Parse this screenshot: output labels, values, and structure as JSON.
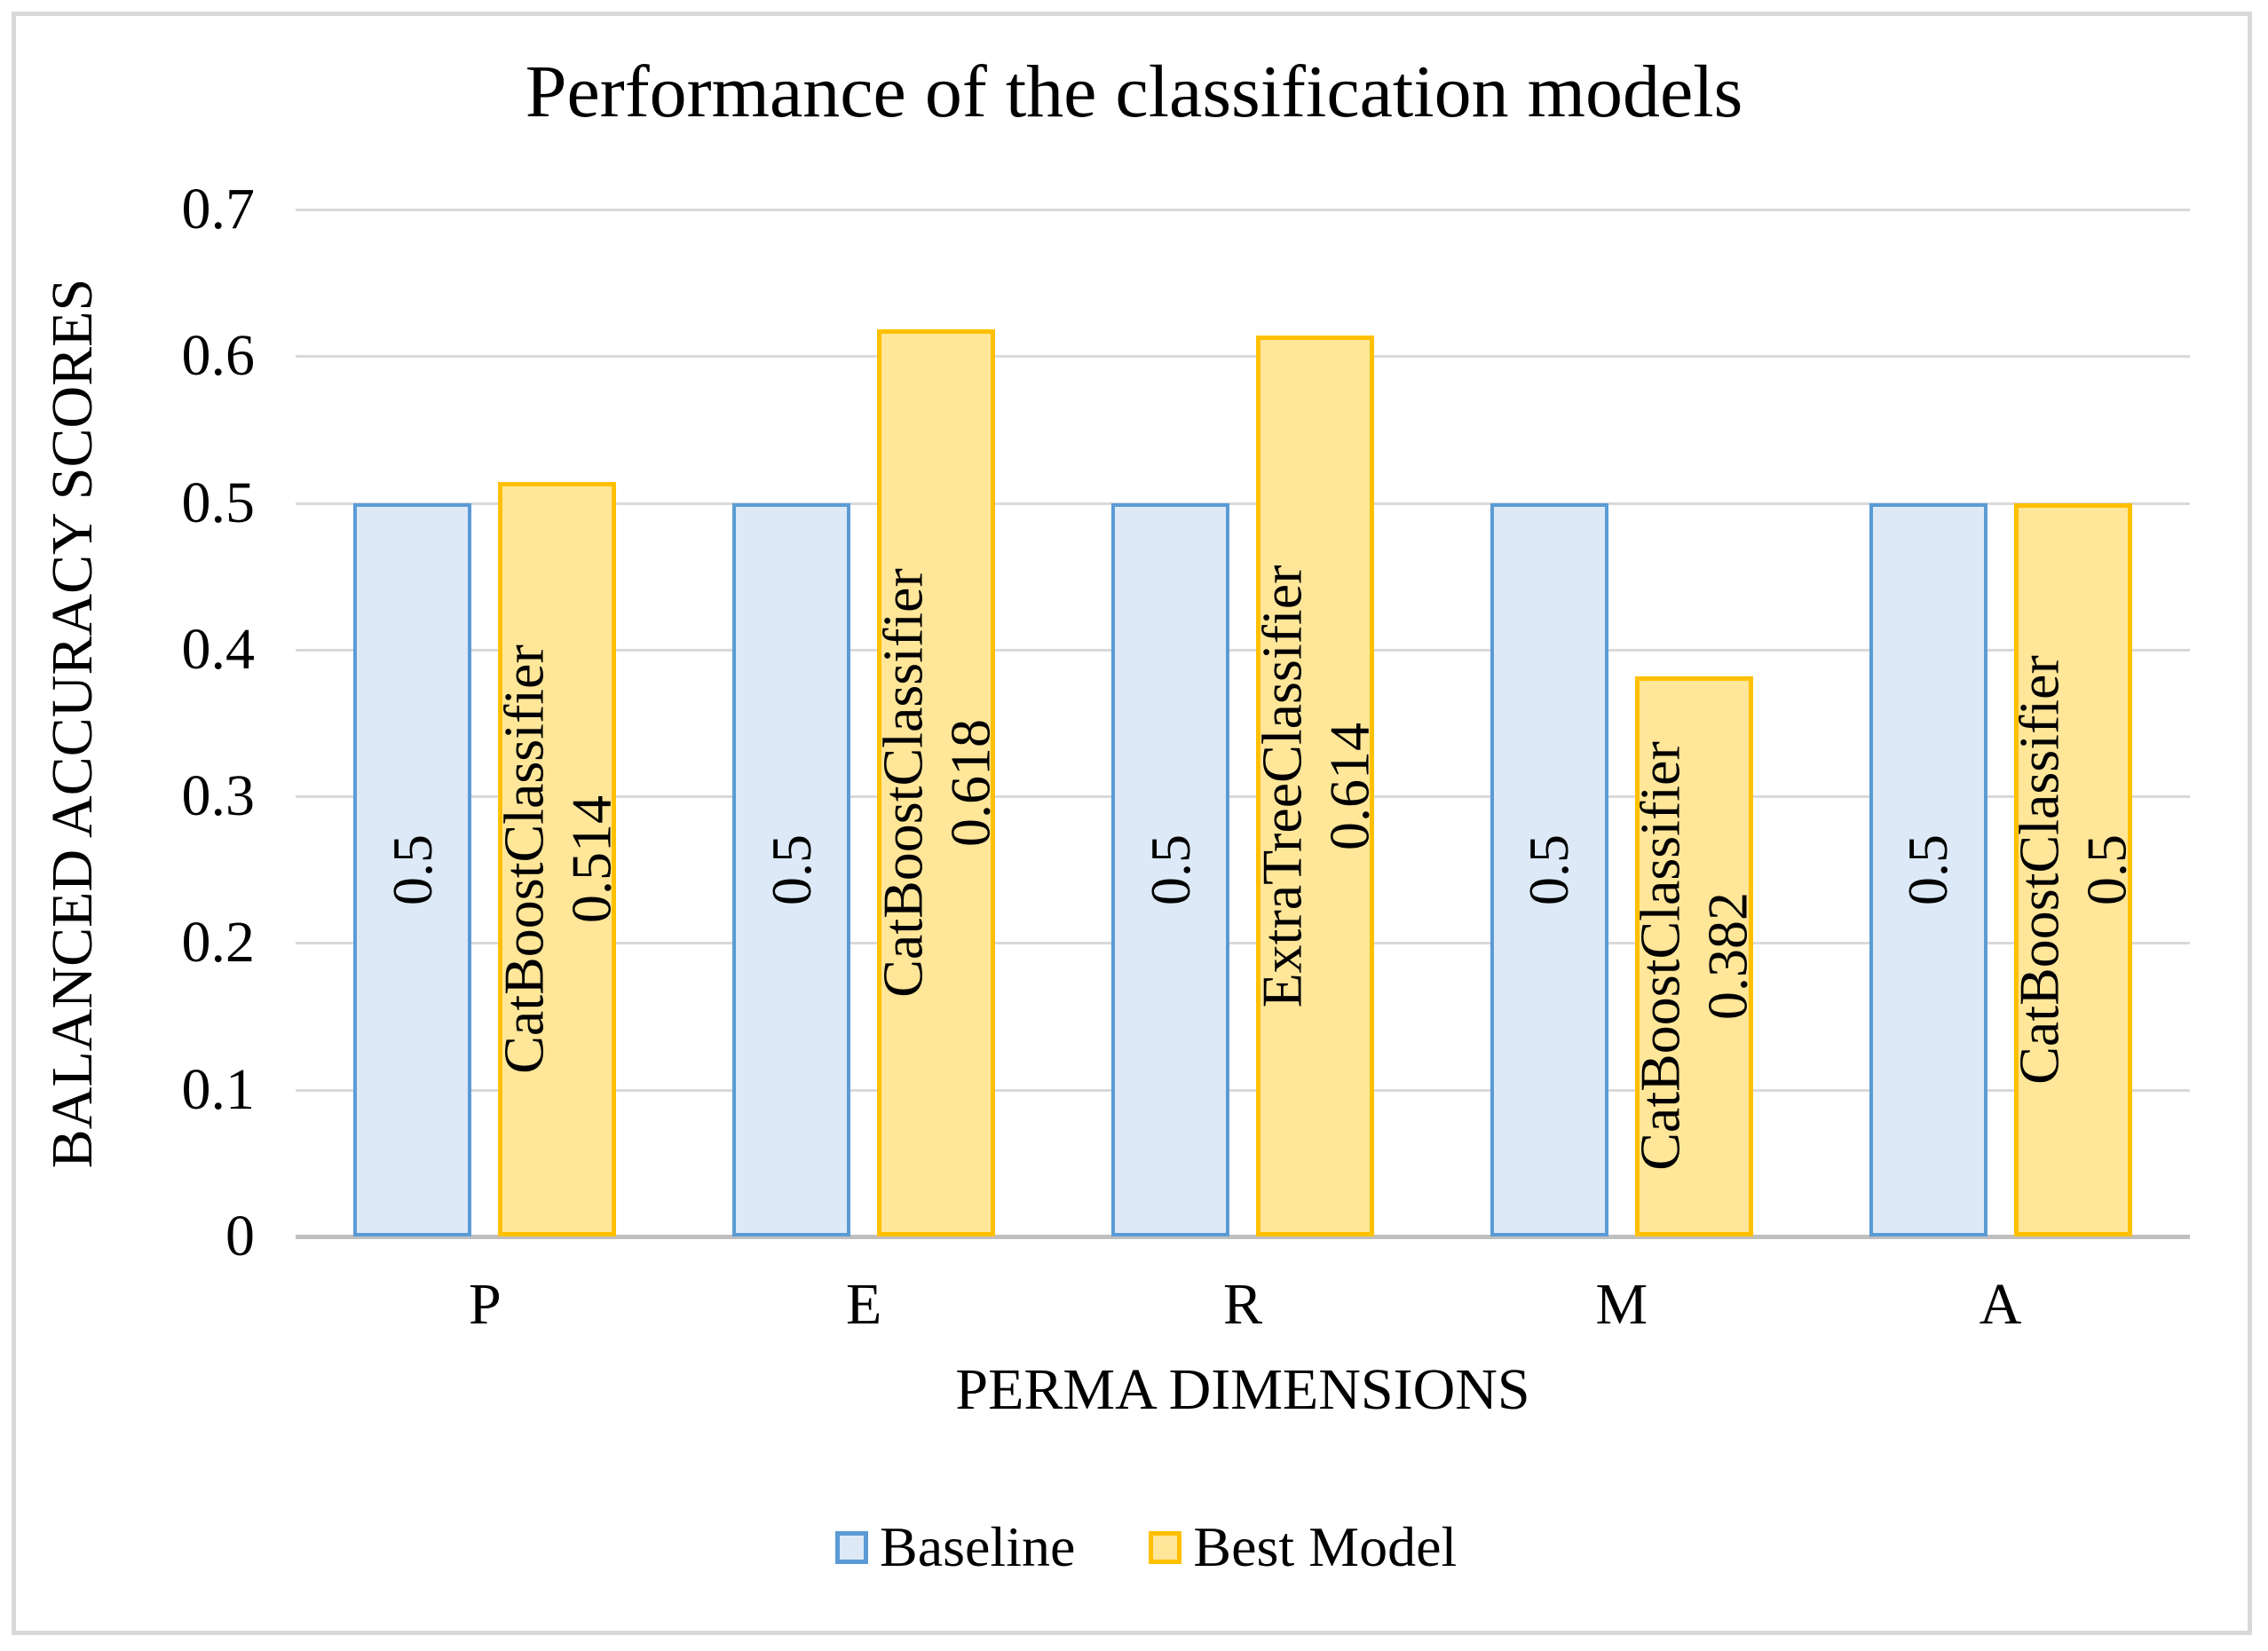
{
  "chart_data": {
    "type": "bar",
    "title": "Performance of the classification models",
    "xlabel": "PERMA DIMENSIONS",
    "ylabel": "BALANCED ACCURACY SCORES",
    "categories": [
      "P",
      "E",
      "R",
      "M",
      "A"
    ],
    "ylim": [
      0,
      0.7
    ],
    "ytick_labels": [
      "0",
      "0.1",
      "0.2",
      "0.3",
      "0.4",
      "0.5",
      "0.6",
      "0.7"
    ],
    "grid": true,
    "legend_position": "bottom",
    "series": [
      {
        "name": "Baseline",
        "values": [
          0.5,
          0.5,
          0.5,
          0.5,
          0.5
        ],
        "bar_labels": [
          [
            "0.5"
          ],
          [
            "0.5"
          ],
          [
            "0.5"
          ],
          [
            "0.5"
          ],
          [
            "0.5"
          ]
        ],
        "fill_color": "#dde9f6",
        "border_color": "#5b9bd5"
      },
      {
        "name": "Best Model",
        "values": [
          0.514,
          0.618,
          0.614,
          0.382,
          0.5
        ],
        "bar_labels": [
          [
            "CatBoostClassifier",
            "0.514"
          ],
          [
            "CatBoostClassifier",
            "0.618"
          ],
          [
            "ExtraTreeClassifier",
            "0.614"
          ],
          [
            "CatBoostClassifier",
            "0.382"
          ],
          [
            "CatBoostClassifier",
            "0.5"
          ]
        ],
        "fill_color": "#ffe699",
        "border_color": "#ffc000"
      }
    ],
    "colors": {
      "gridline": "#d9d9d9",
      "axis_line": "#bfbfbf",
      "text": "#000000",
      "frame_border": "#d9d9d9",
      "background": "#ffffff"
    }
  }
}
